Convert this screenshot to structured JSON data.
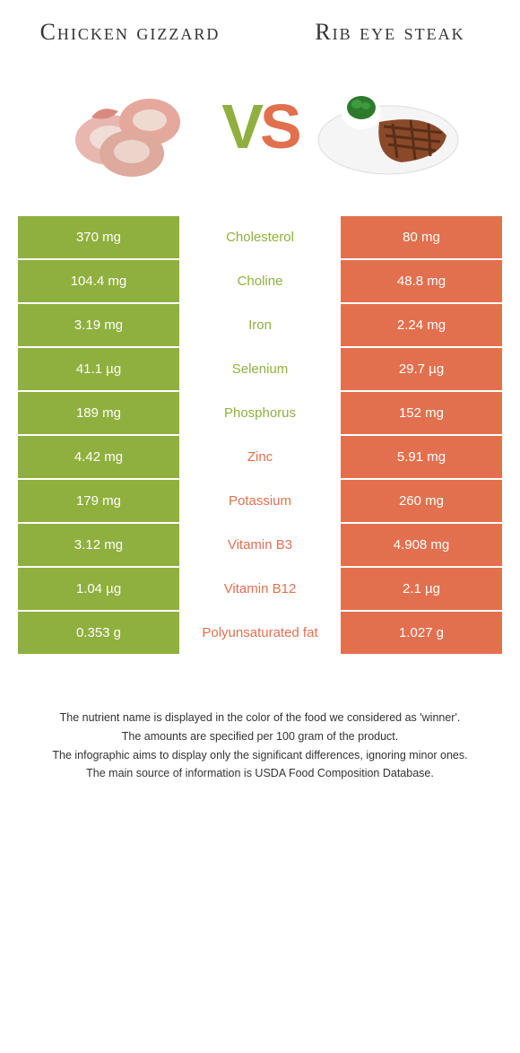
{
  "titles": {
    "left": "Chicken gizzard",
    "right": "Rib eye steak"
  },
  "vs": {
    "v": "V",
    "s": "S"
  },
  "colors": {
    "left": "#8fb03e",
    "right": "#e2704f",
    "text": "#333333",
    "background": "#ffffff"
  },
  "rows": [
    {
      "left": "370 mg",
      "label": "Cholesterol",
      "right": "80 mg",
      "winner": "left"
    },
    {
      "left": "104.4 mg",
      "label": "Choline",
      "right": "48.8 mg",
      "winner": "left"
    },
    {
      "left": "3.19 mg",
      "label": "Iron",
      "right": "2.24 mg",
      "winner": "left"
    },
    {
      "left": "41.1 µg",
      "label": "Selenium",
      "right": "29.7 µg",
      "winner": "left"
    },
    {
      "left": "189 mg",
      "label": "Phosphorus",
      "right": "152 mg",
      "winner": "left"
    },
    {
      "left": "4.42 mg",
      "label": "Zinc",
      "right": "5.91 mg",
      "winner": "right"
    },
    {
      "left": "179 mg",
      "label": "Potassium",
      "right": "260 mg",
      "winner": "right"
    },
    {
      "left": "3.12 mg",
      "label": "Vitamin B3",
      "right": "4.908 mg",
      "winner": "right"
    },
    {
      "left": "1.04 µg",
      "label": "Vitamin B12",
      "right": "2.1 µg",
      "winner": "right"
    },
    {
      "left": "0.353 g",
      "label": "Polyunsaturated fat",
      "right": "1.027 g",
      "winner": "right"
    }
  ],
  "footer": [
    "The nutrient name is displayed in the color of the food we considered as 'winner'.",
    "The amounts are specified per 100 gram of the product.",
    "The infographic aims to display only the significant differences, ignoring minor ones.",
    "The main source of information is USDA Food Composition Database."
  ]
}
